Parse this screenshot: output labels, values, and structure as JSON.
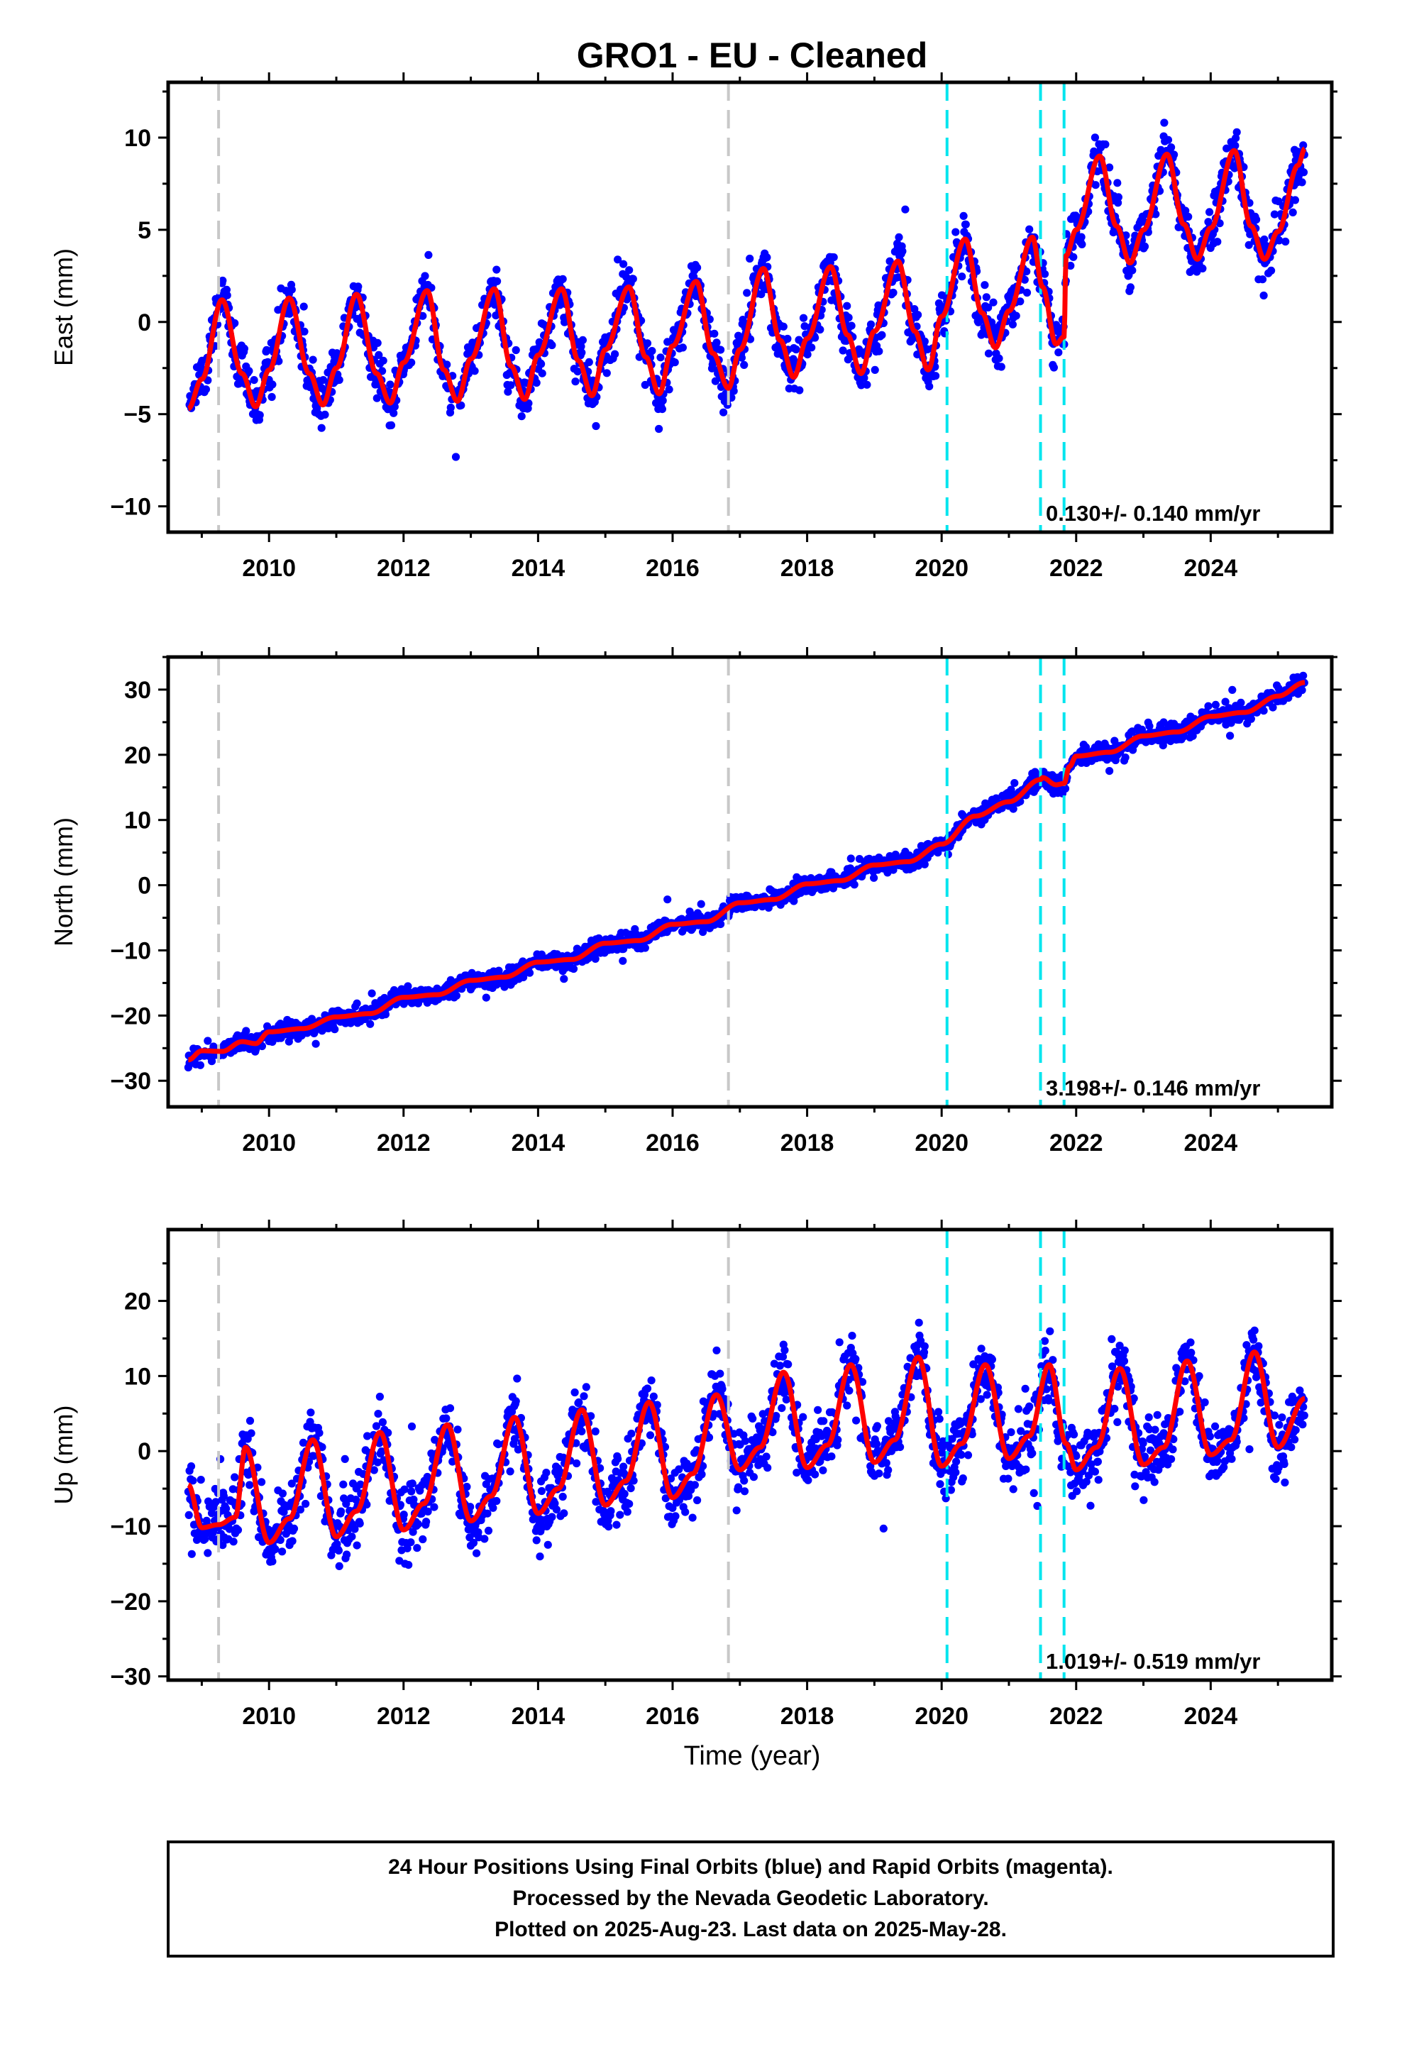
{
  "title": "GRO1  - EU - Cleaned",
  "x_axis_label": "Time (year)",
  "footer": {
    "line1": "24 Hour Positions Using Final Orbits (blue) and Rapid Orbits (magenta).",
    "line2": "Processed by the Nevada Geodetic Laboratory.",
    "line3": "Plotted on 2025-Aug-23. Last data on 2025-May-28."
  },
  "colors": {
    "final_orbits": "#0000ff",
    "model": "#ff0000",
    "equipment_change": "#c8c8c8",
    "event": "#00e5ee"
  },
  "chart_data": [
    {
      "type": "scatter",
      "name": "east",
      "ylabel": "East (mm)",
      "xlim": [
        2008.5,
        2025.8
      ],
      "ylim": [
        -11.4,
        13
      ],
      "xticks": [
        2010,
        2012,
        2014,
        2016,
        2018,
        2020,
        2022,
        2024
      ],
      "yticks": [
        -10,
        -5,
        0,
        5,
        10
      ],
      "grid": false,
      "rate_label": "0.130+/- 0.140 mm/yr",
      "vlines_gray": [
        2009.25,
        2016.83
      ],
      "vlines_cyan": [
        2020.08,
        2021.47,
        2021.82
      ],
      "model": {
        "x": [
          2008.8,
          2009.0,
          2009.3,
          2009.6,
          2009.8,
          2010.0,
          2010.3,
          2010.6,
          2010.8,
          2011.0,
          2011.3,
          2011.6,
          2011.8,
          2012.0,
          2012.35,
          2012.6,
          2012.8,
          2013.0,
          2013.35,
          2013.6,
          2013.8,
          2014.0,
          2014.35,
          2014.6,
          2014.8,
          2015.0,
          2015.35,
          2015.6,
          2015.8,
          2016.0,
          2016.35,
          2016.6,
          2016.83,
          2017.0,
          2017.35,
          2017.6,
          2017.8,
          2018.0,
          2018.35,
          2018.6,
          2018.8,
          2019.0,
          2019.35,
          2019.6,
          2019.8,
          2020.0,
          2020.35,
          2020.6,
          2020.8,
          2021.0,
          2021.35,
          2021.5,
          2021.7,
          2021.82,
          2021.85,
          2022.0,
          2022.35,
          2022.6,
          2022.8,
          2023.0,
          2023.35,
          2023.6,
          2023.8,
          2024.0,
          2024.35,
          2024.6,
          2024.8,
          2025.0,
          2025.3,
          2025.4
        ],
        "y": [
          -4.7,
          -3.1,
          1.2,
          -2.8,
          -4.6,
          -2.6,
          1.3,
          -2.8,
          -4.5,
          -2.5,
          1.5,
          -2.8,
          -4.4,
          -2.2,
          1.7,
          -2.6,
          -4.3,
          -2.0,
          1.8,
          -2.4,
          -4.2,
          -1.8,
          1.8,
          -2.1,
          -4.0,
          -1.5,
          1.9,
          -1.9,
          -3.9,
          -1.3,
          2.2,
          -1.7,
          -3.6,
          -1.5,
          2.9,
          -1.0,
          -3.0,
          -0.9,
          3.0,
          -0.7,
          -2.8,
          -0.5,
          3.3,
          -0.5,
          -2.6,
          0.3,
          4.5,
          0.5,
          -1.4,
          0.6,
          4.6,
          1.9,
          -1.2,
          -0.8,
          3.6,
          5.0,
          9.0,
          5.2,
          3.2,
          5.0,
          9.1,
          5.3,
          3.4,
          5.1,
          9.3,
          5.2,
          3.4,
          4.9,
          8.5,
          9.4
        ]
      }
    },
    {
      "type": "scatter",
      "name": "north",
      "ylabel": "North (mm)",
      "xlim": [
        2008.5,
        2025.8
      ],
      "ylim": [
        -34,
        35
      ],
      "xticks": [
        2010,
        2012,
        2014,
        2016,
        2018,
        2020,
        2022,
        2024
      ],
      "yticks": [
        -30,
        -20,
        -10,
        0,
        10,
        20,
        30
      ],
      "grid": false,
      "rate_label": "3.198+/- 0.146 mm/yr",
      "vlines_gray": [
        2009.25,
        2016.83
      ],
      "vlines_cyan": [
        2020.08,
        2021.47,
        2021.82
      ],
      "model": {
        "x": [
          2008.8,
          2009.0,
          2009.3,
          2009.6,
          2009.8,
          2010.0,
          2010.5,
          2011.0,
          2011.5,
          2012.0,
          2012.5,
          2013.0,
          2013.5,
          2014.0,
          2014.5,
          2015.0,
          2015.5,
          2016.0,
          2016.5,
          2017.0,
          2017.5,
          2018.0,
          2018.5,
          2019.0,
          2019.5,
          2020.0,
          2020.5,
          2021.0,
          2021.47,
          2021.5,
          2021.7,
          2021.82,
          2021.9,
          2022.0,
          2022.5,
          2023.0,
          2023.5,
          2024.0,
          2024.5,
          2025.0,
          2025.4
        ],
        "y": [
          -26.8,
          -25.4,
          -25.5,
          -24.0,
          -24.3,
          -22.5,
          -22.0,
          -20.2,
          -19.7,
          -17.2,
          -16.8,
          -14.6,
          -14.1,
          -11.8,
          -11.4,
          -8.9,
          -8.5,
          -6.0,
          -5.6,
          -2.7,
          -2.2,
          0.2,
          0.7,
          3.1,
          3.6,
          6.3,
          10.6,
          12.8,
          16.2,
          16.5,
          15.4,
          15.6,
          18.2,
          19.8,
          20.4,
          22.9,
          23.5,
          25.9,
          26.5,
          29.0,
          31.1
        ]
      }
    },
    {
      "type": "scatter",
      "name": "up",
      "ylabel": "Up (mm)",
      "xlim": [
        2008.5,
        2025.8
      ],
      "ylim": [
        -30.5,
        29.5
      ],
      "xticks": [
        2010,
        2012,
        2014,
        2016,
        2018,
        2020,
        2022,
        2024
      ],
      "yticks": [
        -30,
        -20,
        -10,
        0,
        10,
        20
      ],
      "grid": false,
      "rate_label": "1.019+/- 0.519 mm/yr",
      "vlines_gray": [
        2009.25,
        2016.83
      ],
      "vlines_cyan": [
        2020.08,
        2021.47,
        2021.82
      ],
      "model": {
        "x": [
          2008.8,
          2009.0,
          2009.25,
          2009.5,
          2009.65,
          2010.0,
          2010.3,
          2010.65,
          2011.0,
          2011.3,
          2011.65,
          2012.0,
          2012.3,
          2012.65,
          2013.0,
          2013.3,
          2013.65,
          2014.0,
          2014.3,
          2014.65,
          2015.0,
          2015.3,
          2015.65,
          2016.0,
          2016.3,
          2016.65,
          2017.0,
          2017.3,
          2017.65,
          2018.0,
          2018.3,
          2018.65,
          2019.0,
          2019.3,
          2019.65,
          2020.0,
          2020.3,
          2020.65,
          2021.0,
          2021.3,
          2021.6,
          2021.85,
          2022.0,
          2022.3,
          2022.65,
          2023.0,
          2023.3,
          2023.65,
          2024.0,
          2024.3,
          2024.65,
          2025.0,
          2025.4
        ],
        "y": [
          -4.5,
          -10.2,
          -9.8,
          -8.8,
          0.5,
          -12.2,
          -9.0,
          1.5,
          -11.4,
          -8.0,
          2.5,
          -10.5,
          -7.0,
          3.5,
          -9.3,
          -6.0,
          4.5,
          -8.3,
          -5.0,
          5.5,
          -7.2,
          -4.0,
          6.5,
          -6.2,
          -3.0,
          7.5,
          -2.5,
          0.5,
          10.5,
          -2.2,
          0.8,
          11.5,
          -1.5,
          1.5,
          12.5,
          -2.0,
          1.0,
          11.5,
          -1.0,
          2.0,
          11.5,
          1.0,
          -2.5,
          0.5,
          11.0,
          -1.8,
          0.5,
          12.0,
          -0.5,
          1.5,
          13.2,
          0.5,
          7.0
        ]
      }
    }
  ]
}
